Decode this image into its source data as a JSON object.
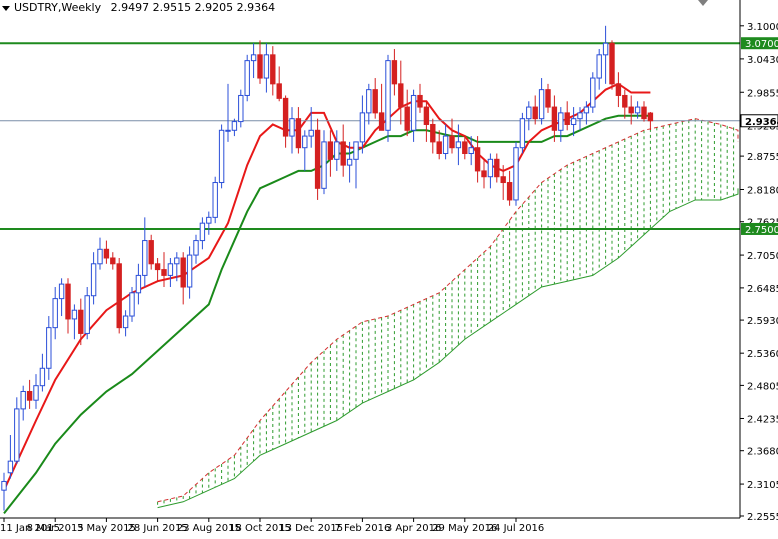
{
  "header": {
    "symbol_label": "USDTRY,Weekly",
    "ohlc": [
      "2.9497",
      "2.9515",
      "2.9205",
      "2.9364"
    ]
  },
  "chart_data": {
    "type": "candlestick",
    "symbol": "USDTRY",
    "timeframe": "Weekly",
    "title": "USDTRY,Weekly  2.9497 2.9515 2.9205 2.9364",
    "ylim": [
      2.2555,
      3.11
    ],
    "y_ticks": [
      "3.1000",
      "3.0430",
      "2.9855",
      "2.9285",
      "2.8755",
      "2.8180",
      "2.7625",
      "2.7050",
      "2.6485",
      "2.5930",
      "2.5360",
      "2.4805",
      "2.4235",
      "2.3680",
      "2.3105",
      "2.2555"
    ],
    "x_ticks": [
      "11 Jan 2015",
      "8 Mar 2015",
      "3 May 2015",
      "28 Jun 2015",
      "23 Aug 2015",
      "18 Oct 2015",
      "13 Dec 2015",
      "7 Feb 2016",
      "3 Apr 2016",
      "29 May 2016",
      "24 Jul 2016"
    ],
    "x_tick_bars": [
      0,
      8,
      16,
      24,
      32,
      40,
      48,
      56,
      64,
      72,
      80
    ],
    "colors": {
      "up": "#2b4fd8",
      "down": "#d42020",
      "tenkan": "#e81818",
      "kijun": "#1a8a1a",
      "cloud_bull": "#2e9b2e",
      "cloud_bear": "#d43030",
      "level": "#1e8a1e"
    },
    "levels": [
      {
        "value": 3.07,
        "label": "3.0700"
      },
      {
        "value": 2.75,
        "label": "2.7500"
      }
    ],
    "current": {
      "value": 2.9364,
      "label": "2.9364"
    },
    "candles": [
      {
        "o": 2.3,
        "h": 2.33,
        "l": 2.265,
        "c": 2.315
      },
      {
        "o": 2.33,
        "h": 2.395,
        "l": 2.32,
        "c": 2.35
      },
      {
        "o": 2.35,
        "h": 2.46,
        "l": 2.345,
        "c": 2.44
      },
      {
        "o": 2.44,
        "h": 2.48,
        "l": 2.42,
        "c": 2.47
      },
      {
        "o": 2.47,
        "h": 2.49,
        "l": 2.44,
        "c": 2.455
      },
      {
        "o": 2.455,
        "h": 2.5,
        "l": 2.44,
        "c": 2.48
      },
      {
        "o": 2.48,
        "h": 2.535,
        "l": 2.47,
        "c": 2.51
      },
      {
        "o": 2.51,
        "h": 2.6,
        "l": 2.49,
        "c": 2.58
      },
      {
        "o": 2.58,
        "h": 2.65,
        "l": 2.56,
        "c": 2.63
      },
      {
        "o": 2.63,
        "h": 2.665,
        "l": 2.6,
        "c": 2.655
      },
      {
        "o": 2.655,
        "h": 2.665,
        "l": 2.57,
        "c": 2.595
      },
      {
        "o": 2.595,
        "h": 2.62,
        "l": 2.56,
        "c": 2.61
      },
      {
        "o": 2.61,
        "h": 2.63,
        "l": 2.55,
        "c": 2.57
      },
      {
        "o": 2.57,
        "h": 2.65,
        "l": 2.56,
        "c": 2.635
      },
      {
        "o": 2.635,
        "h": 2.71,
        "l": 2.62,
        "c": 2.69
      },
      {
        "o": 2.69,
        "h": 2.735,
        "l": 2.68,
        "c": 2.715
      },
      {
        "o": 2.715,
        "h": 2.73,
        "l": 2.69,
        "c": 2.7
      },
      {
        "o": 2.7,
        "h": 2.71,
        "l": 2.68,
        "c": 2.69
      },
      {
        "o": 2.69,
        "h": 2.7,
        "l": 2.57,
        "c": 2.58
      },
      {
        "o": 2.58,
        "h": 2.61,
        "l": 2.565,
        "c": 2.6
      },
      {
        "o": 2.6,
        "h": 2.65,
        "l": 2.59,
        "c": 2.64
      },
      {
        "o": 2.64,
        "h": 2.69,
        "l": 2.62,
        "c": 2.67
      },
      {
        "o": 2.67,
        "h": 2.77,
        "l": 2.65,
        "c": 2.73
      },
      {
        "o": 2.73,
        "h": 2.74,
        "l": 2.68,
        "c": 2.69
      },
      {
        "o": 2.69,
        "h": 2.7,
        "l": 2.66,
        "c": 2.68
      },
      {
        "o": 2.68,
        "h": 2.71,
        "l": 2.65,
        "c": 2.67
      },
      {
        "o": 2.67,
        "h": 2.7,
        "l": 2.65,
        "c": 2.69
      },
      {
        "o": 2.69,
        "h": 2.71,
        "l": 2.66,
        "c": 2.7
      },
      {
        "o": 2.7,
        "h": 2.71,
        "l": 2.62,
        "c": 2.65
      },
      {
        "o": 2.65,
        "h": 2.72,
        "l": 2.63,
        "c": 2.705
      },
      {
        "o": 2.705,
        "h": 2.74,
        "l": 2.69,
        "c": 2.73
      },
      {
        "o": 2.73,
        "h": 2.77,
        "l": 2.715,
        "c": 2.76
      },
      {
        "o": 2.76,
        "h": 2.78,
        "l": 2.74,
        "c": 2.77
      },
      {
        "o": 2.77,
        "h": 2.84,
        "l": 2.76,
        "c": 2.83
      },
      {
        "o": 2.83,
        "h": 2.93,
        "l": 2.82,
        "c": 2.92
      },
      {
        "o": 2.92,
        "h": 3.0,
        "l": 2.9,
        "c": 2.92
      },
      {
        "o": 2.92,
        "h": 2.94,
        "l": 2.91,
        "c": 2.935
      },
      {
        "o": 2.935,
        "h": 2.99,
        "l": 2.925,
        "c": 2.98
      },
      {
        "o": 2.98,
        "h": 3.05,
        "l": 2.97,
        "c": 3.04
      },
      {
        "o": 3.04,
        "h": 3.07,
        "l": 3.01,
        "c": 3.05
      },
      {
        "o": 3.05,
        "h": 3.075,
        "l": 3.0,
        "c": 3.01
      },
      {
        "o": 3.01,
        "h": 3.07,
        "l": 2.985,
        "c": 3.05
      },
      {
        "o": 3.05,
        "h": 3.065,
        "l": 2.98,
        "c": 3.0
      },
      {
        "o": 3.0,
        "h": 3.03,
        "l": 2.97,
        "c": 2.975
      },
      {
        "o": 2.975,
        "h": 2.98,
        "l": 2.89,
        "c": 2.91
      },
      {
        "o": 2.91,
        "h": 2.96,
        "l": 2.88,
        "c": 2.94
      },
      {
        "o": 2.94,
        "h": 2.96,
        "l": 2.88,
        "c": 2.89
      },
      {
        "o": 2.89,
        "h": 2.92,
        "l": 2.85,
        "c": 2.91
      },
      {
        "o": 2.91,
        "h": 2.96,
        "l": 2.89,
        "c": 2.92
      },
      {
        "o": 2.92,
        "h": 2.94,
        "l": 2.8,
        "c": 2.82
      },
      {
        "o": 2.82,
        "h": 2.92,
        "l": 2.81,
        "c": 2.9
      },
      {
        "o": 2.9,
        "h": 2.92,
        "l": 2.84,
        "c": 2.87
      },
      {
        "o": 2.87,
        "h": 2.92,
        "l": 2.85,
        "c": 2.9
      },
      {
        "o": 2.9,
        "h": 2.93,
        "l": 2.84,
        "c": 2.86
      },
      {
        "o": 2.86,
        "h": 2.9,
        "l": 2.83,
        "c": 2.87
      },
      {
        "o": 2.87,
        "h": 2.9,
        "l": 2.82,
        "c": 2.9
      },
      {
        "o": 2.9,
        "h": 2.98,
        "l": 2.88,
        "c": 2.95
      },
      {
        "o": 2.95,
        "h": 3.0,
        "l": 2.93,
        "c": 2.99
      },
      {
        "o": 2.99,
        "h": 3.01,
        "l": 2.94,
        "c": 2.95
      },
      {
        "o": 2.95,
        "h": 3.0,
        "l": 2.92,
        "c": 2.92
      },
      {
        "o": 2.92,
        "h": 3.05,
        "l": 2.9,
        "c": 3.04
      },
      {
        "o": 3.04,
        "h": 3.06,
        "l": 2.98,
        "c": 3.0
      },
      {
        "o": 3.0,
        "h": 3.04,
        "l": 2.93,
        "c": 2.96
      },
      {
        "o": 2.96,
        "h": 2.99,
        "l": 2.91,
        "c": 2.92
      },
      {
        "o": 2.92,
        "h": 2.99,
        "l": 2.9,
        "c": 2.98
      },
      {
        "o": 2.98,
        "h": 3.0,
        "l": 2.95,
        "c": 2.96
      },
      {
        "o": 2.96,
        "h": 2.97,
        "l": 2.9,
        "c": 2.93
      },
      {
        "o": 2.93,
        "h": 2.94,
        "l": 2.88,
        "c": 2.9
      },
      {
        "o": 2.9,
        "h": 2.92,
        "l": 2.87,
        "c": 2.88
      },
      {
        "o": 2.88,
        "h": 2.93,
        "l": 2.87,
        "c": 2.91
      },
      {
        "o": 2.91,
        "h": 2.94,
        "l": 2.88,
        "c": 2.89
      },
      {
        "o": 2.89,
        "h": 2.93,
        "l": 2.86,
        "c": 2.9
      },
      {
        "o": 2.9,
        "h": 2.91,
        "l": 2.87,
        "c": 2.88
      },
      {
        "o": 2.88,
        "h": 2.91,
        "l": 2.86,
        "c": 2.89
      },
      {
        "o": 2.89,
        "h": 2.91,
        "l": 2.83,
        "c": 2.85
      },
      {
        "o": 2.85,
        "h": 2.87,
        "l": 2.82,
        "c": 2.84
      },
      {
        "o": 2.84,
        "h": 2.88,
        "l": 2.82,
        "c": 2.87
      },
      {
        "o": 2.87,
        "h": 2.88,
        "l": 2.83,
        "c": 2.84
      },
      {
        "o": 2.84,
        "h": 2.86,
        "l": 2.8,
        "c": 2.83
      },
      {
        "o": 2.83,
        "h": 2.85,
        "l": 2.79,
        "c": 2.8
      },
      {
        "o": 2.8,
        "h": 2.9,
        "l": 2.79,
        "c": 2.89
      },
      {
        "o": 2.89,
        "h": 2.95,
        "l": 2.88,
        "c": 2.94
      },
      {
        "o": 2.94,
        "h": 2.97,
        "l": 2.92,
        "c": 2.96
      },
      {
        "o": 2.96,
        "h": 2.98,
        "l": 2.93,
        "c": 2.94
      },
      {
        "o": 2.94,
        "h": 3.01,
        "l": 2.93,
        "c": 2.99
      },
      {
        "o": 2.99,
        "h": 3.0,
        "l": 2.95,
        "c": 2.96
      },
      {
        "o": 2.96,
        "h": 2.98,
        "l": 2.9,
        "c": 2.92
      },
      {
        "o": 2.92,
        "h": 2.96,
        "l": 2.9,
        "c": 2.95
      },
      {
        "o": 2.95,
        "h": 2.97,
        "l": 2.92,
        "c": 2.93
      },
      {
        "o": 2.93,
        "h": 2.96,
        "l": 2.91,
        "c": 2.94
      },
      {
        "o": 2.94,
        "h": 2.96,
        "l": 2.92,
        "c": 2.95
      },
      {
        "o": 2.95,
        "h": 2.97,
        "l": 2.93,
        "c": 2.96
      },
      {
        "o": 2.96,
        "h": 3.02,
        "l": 2.95,
        "c": 3.01
      },
      {
        "o": 3.01,
        "h": 3.06,
        "l": 2.99,
        "c": 3.05
      },
      {
        "o": 3.05,
        "h": 3.1,
        "l": 3.0,
        "c": 3.07
      },
      {
        "o": 3.07,
        "h": 3.075,
        "l": 2.99,
        "c": 3.0
      },
      {
        "o": 3.0,
        "h": 3.02,
        "l": 2.96,
        "c": 2.98
      },
      {
        "o": 2.98,
        "h": 2.99,
        "l": 2.94,
        "c": 2.96
      },
      {
        "o": 2.96,
        "h": 2.98,
        "l": 2.93,
        "c": 2.95
      },
      {
        "o": 2.95,
        "h": 2.97,
        "l": 2.94,
        "c": 2.96
      },
      {
        "o": 2.96,
        "h": 2.97,
        "l": 2.935,
        "c": 2.94
      },
      {
        "o": 2.9497,
        "h": 2.9515,
        "l": 2.9205,
        "c": 2.9364
      }
    ],
    "tenkan": [
      [
        0,
        2.3
      ],
      [
        5,
        2.42
      ],
      [
        8,
        2.49
      ],
      [
        12,
        2.56
      ],
      [
        16,
        2.61
      ],
      [
        20,
        2.64
      ],
      [
        24,
        2.66
      ],
      [
        28,
        2.67
      ],
      [
        32,
        2.7
      ],
      [
        35,
        2.76
      ],
      [
        38,
        2.86
      ],
      [
        40,
        2.91
      ],
      [
        42,
        2.93
      ],
      [
        44,
        2.92
      ],
      [
        46,
        2.92
      ],
      [
        48,
        2.95
      ],
      [
        50,
        2.95
      ],
      [
        52,
        2.9
      ],
      [
        54,
        2.89
      ],
      [
        56,
        2.89
      ],
      [
        58,
        2.92
      ],
      [
        60,
        2.94
      ],
      [
        62,
        2.96
      ],
      [
        64,
        2.97
      ],
      [
        66,
        2.97
      ],
      [
        68,
        2.94
      ],
      [
        70,
        2.92
      ],
      [
        72,
        2.91
      ],
      [
        74,
        2.88
      ],
      [
        76,
        2.86
      ],
      [
        78,
        2.85
      ],
      [
        80,
        2.86
      ],
      [
        82,
        2.9
      ],
      [
        84,
        2.92
      ],
      [
        86,
        2.93
      ],
      [
        88,
        2.94
      ],
      [
        90,
        2.95
      ],
      [
        92,
        2.97
      ],
      [
        94,
        2.99
      ],
      [
        96,
        3.0
      ],
      [
        98,
        2.985
      ],
      [
        101,
        2.985
      ]
    ],
    "kijun": [
      [
        0,
        2.26
      ],
      [
        5,
        2.33
      ],
      [
        8,
        2.38
      ],
      [
        12,
        2.43
      ],
      [
        16,
        2.47
      ],
      [
        20,
        2.5
      ],
      [
        24,
        2.54
      ],
      [
        28,
        2.58
      ],
      [
        32,
        2.62
      ],
      [
        34,
        2.68
      ],
      [
        36,
        2.73
      ],
      [
        38,
        2.78
      ],
      [
        40,
        2.82
      ],
      [
        42,
        2.83
      ],
      [
        44,
        2.84
      ],
      [
        46,
        2.85
      ],
      [
        48,
        2.85
      ],
      [
        50,
        2.86
      ],
      [
        52,
        2.88
      ],
      [
        54,
        2.88
      ],
      [
        56,
        2.89
      ],
      [
        58,
        2.9
      ],
      [
        60,
        2.91
      ],
      [
        62,
        2.91
      ],
      [
        64,
        2.92
      ],
      [
        66,
        2.92
      ],
      [
        68,
        2.915
      ],
      [
        70,
        2.91
      ],
      [
        72,
        2.91
      ],
      [
        74,
        2.9
      ],
      [
        76,
        2.9
      ],
      [
        78,
        2.9
      ],
      [
        80,
        2.9
      ],
      [
        82,
        2.9
      ],
      [
        84,
        2.9
      ],
      [
        86,
        2.91
      ],
      [
        88,
        2.91
      ],
      [
        90,
        2.92
      ],
      [
        92,
        2.93
      ],
      [
        94,
        2.94
      ],
      [
        96,
        2.945
      ],
      [
        98,
        2.945
      ],
      [
        101,
        2.945
      ]
    ],
    "cloud": [
      [
        24,
        2.28,
        2.27
      ],
      [
        28,
        2.29,
        2.28
      ],
      [
        32,
        2.33,
        2.3
      ],
      [
        36,
        2.36,
        2.32
      ],
      [
        40,
        2.42,
        2.36
      ],
      [
        44,
        2.47,
        2.38
      ],
      [
        48,
        2.52,
        2.4
      ],
      [
        52,
        2.56,
        2.42
      ],
      [
        56,
        2.59,
        2.45
      ],
      [
        60,
        2.6,
        2.47
      ],
      [
        64,
        2.62,
        2.49
      ],
      [
        68,
        2.64,
        2.52
      ],
      [
        72,
        2.68,
        2.56
      ],
      [
        76,
        2.72,
        2.59
      ],
      [
        80,
        2.78,
        2.62
      ],
      [
        84,
        2.83,
        2.65
      ],
      [
        88,
        2.86,
        2.66
      ],
      [
        92,
        2.88,
        2.67
      ],
      [
        96,
        2.9,
        2.7
      ],
      [
        100,
        2.92,
        2.74
      ],
      [
        104,
        2.93,
        2.78
      ],
      [
        108,
        2.94,
        2.8
      ],
      [
        112,
        2.93,
        2.8
      ],
      [
        116,
        2.92,
        2.81
      ],
      [
        120,
        2.91,
        2.81
      ],
      [
        126,
        2.9,
        2.82
      ]
    ]
  }
}
